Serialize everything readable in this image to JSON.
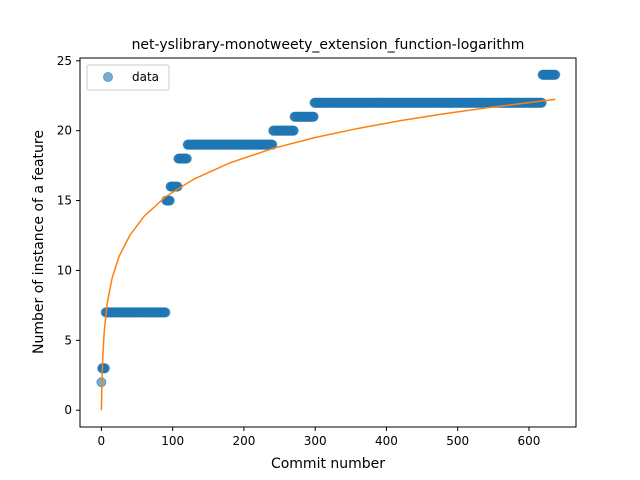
{
  "chart_data": {
    "type": "scatter",
    "title": "net-yslibrary-monotweety_extension_function-logarithm",
    "xlabel": "Commit number",
    "ylabel": "Number of instance of a feature",
    "xlim": [
      -30,
      666
    ],
    "ylim": [
      -1.2,
      25.2
    ],
    "xticks": [
      0,
      100,
      200,
      300,
      400,
      500,
      600
    ],
    "yticks": [
      0,
      5,
      10,
      15,
      20,
      25
    ],
    "grid": false,
    "legend": {
      "position": "top-left",
      "entries": [
        "data"
      ]
    },
    "colors": {
      "data": "#1f77b4",
      "fit": "#ff7f0e"
    },
    "series": [
      {
        "name": "data",
        "kind": "scatter",
        "segments": [
          {
            "x_start": 0,
            "x_end": 0,
            "y": 2
          },
          {
            "x_start": 1,
            "x_end": 5,
            "y": 3
          },
          {
            "x_start": 6,
            "x_end": 90,
            "y": 7
          },
          {
            "x_start": 91,
            "x_end": 96,
            "y": 15
          },
          {
            "x_start": 97,
            "x_end": 107,
            "y": 16
          },
          {
            "x_start": 108,
            "x_end": 120,
            "y": 18
          },
          {
            "x_start": 121,
            "x_end": 240,
            "y": 19
          },
          {
            "x_start": 241,
            "x_end": 270,
            "y": 20
          },
          {
            "x_start": 271,
            "x_end": 298,
            "y": 21
          },
          {
            "x_start": 299,
            "x_end": 618,
            "y": 22
          },
          {
            "x_start": 619,
            "x_end": 637,
            "y": 24
          }
        ]
      },
      {
        "kind": "line",
        "x": [
          0,
          1,
          2,
          4,
          8,
          15,
          25,
          40,
          60,
          90,
          130,
          180,
          240,
          300,
          360,
          420,
          480,
          540,
          600,
          637
        ],
        "y": [
          0.0,
          2.42,
          3.84,
          5.63,
          7.59,
          9.45,
          11.03,
          12.52,
          13.88,
          15.27,
          16.54,
          17.69,
          18.72,
          19.51,
          20.16,
          20.72,
          21.2,
          21.63,
          22.01,
          22.24
        ]
      }
    ]
  }
}
